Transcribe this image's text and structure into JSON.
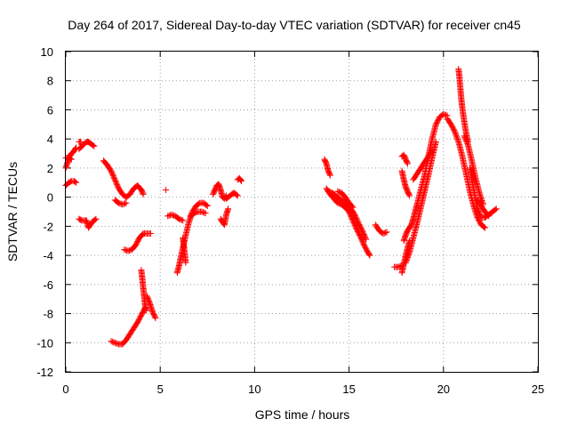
{
  "chart_data": {
    "type": "scatter",
    "title": "Day 264 of 2017, Sidereal Day-to-day VTEC variation (SDTVAR) for receiver cn45",
    "xlabel": "GPS time / hours",
    "ylabel": "SDTVAR / TECUs",
    "xlim": [
      0,
      25
    ],
    "ylim": [
      -12,
      10
    ],
    "xticks": [
      0,
      5,
      10,
      15,
      20,
      25
    ],
    "yticks": [
      -12,
      -10,
      -8,
      -6,
      -4,
      -2,
      0,
      2,
      4,
      6,
      8,
      10
    ],
    "grid": true,
    "marker": "+",
    "color": "#ff0000",
    "segments": [
      {
        "x": [
          0.0,
          0.15,
          0.3,
          0.45,
          0.55
        ],
        "y": [
          0.8,
          1.0,
          1.1,
          1.1,
          1.0
        ]
      },
      {
        "x": [
          0.0,
          0.1,
          0.2,
          0.3,
          0.4,
          0.5,
          0.55
        ],
        "y": [
          2.0,
          2.4,
          2.8,
          3.0,
          3.1,
          3.3,
          3.4
        ]
      },
      {
        "x": [
          0.0,
          0.15,
          0.3
        ],
        "y": [
          2.7,
          2.7,
          2.6
        ]
      },
      {
        "x": [
          0.7,
          0.85,
          1.0,
          1.1,
          1.2,
          1.3,
          1.4,
          1.5
        ],
        "y": [
          3.3,
          3.5,
          3.7,
          3.8,
          3.8,
          3.7,
          3.6,
          3.5
        ]
      },
      {
        "x": [
          0.7,
          0.8
        ],
        "y": [
          3.8,
          3.8
        ]
      },
      {
        "x": [
          0.7,
          0.85,
          1.0,
          1.1,
          1.2,
          1.3,
          1.4,
          1.5,
          1.6
        ],
        "y": [
          -1.5,
          -1.6,
          -1.6,
          -1.6,
          -2.1,
          -1.9,
          -1.7,
          -1.6,
          -1.5
        ]
      },
      {
        "x": [
          2.0,
          2.2,
          2.4,
          2.6,
          2.8,
          3.0,
          3.2,
          3.4,
          3.6,
          3.8,
          4.0,
          4.1
        ],
        "y": [
          2.5,
          2.2,
          1.8,
          1.2,
          0.6,
          0.2,
          0.0,
          0.2,
          0.6,
          0.8,
          0.5,
          0.2
        ]
      },
      {
        "x": [
          2.6,
          2.8,
          3.0,
          3.2
        ],
        "y": [
          -0.2,
          -0.4,
          -0.5,
          -0.4
        ]
      },
      {
        "x": [
          3.1,
          3.3,
          3.5,
          3.7,
          3.9,
          4.1,
          4.3,
          4.5
        ],
        "y": [
          -3.6,
          -3.7,
          -3.6,
          -3.3,
          -2.8,
          -2.5,
          -2.5,
          -2.5
        ]
      },
      {
        "x": [
          2.4,
          2.6,
          2.8,
          3.0,
          3.2,
          3.4,
          3.6,
          3.8,
          4.0,
          4.2
        ],
        "y": [
          -9.9,
          -10.0,
          -10.1,
          -10.1,
          -9.8,
          -9.4,
          -9.0,
          -8.6,
          -8.1,
          -7.6
        ]
      },
      {
        "x": [
          4.0,
          4.05,
          4.1,
          4.15,
          4.2,
          4.25
        ],
        "y": [
          -5.0,
          -5.6,
          -6.2,
          -6.8,
          -7.4,
          -7.8
        ]
      },
      {
        "x": [
          4.3,
          4.45,
          4.6,
          4.75
        ],
        "y": [
          -6.8,
          -7.3,
          -7.9,
          -8.3
        ]
      },
      {
        "x": [
          5.3
        ],
        "y": [
          0.5
        ]
      },
      {
        "x": [
          5.4,
          5.6,
          5.8,
          6.0,
          6.2
        ],
        "y": [
          -1.3,
          -1.2,
          -1.3,
          -1.5,
          -1.6
        ]
      },
      {
        "x": [
          5.9,
          6.0,
          6.1,
          6.2,
          6.3,
          6.5,
          6.7,
          6.9,
          7.1,
          7.3,
          7.5
        ],
        "y": [
          -5.2,
          -4.7,
          -4.1,
          -3.5,
          -2.9,
          -1.8,
          -1.0,
          -0.6,
          -0.4,
          -0.4,
          -0.6
        ]
      },
      {
        "x": [
          6.2,
          6.25,
          6.3,
          6.35
        ],
        "y": [
          -2.8,
          -3.3,
          -3.9,
          -4.5
        ]
      },
      {
        "x": [
          6.6,
          6.8,
          7.0,
          7.2,
          7.4
        ],
        "y": [
          -1.3,
          -1.1,
          -1.0,
          -1.0,
          -1.1
        ]
      },
      {
        "x": [
          7.8,
          7.9,
          8.0,
          8.1,
          8.2,
          8.3,
          8.4,
          8.5
        ],
        "y": [
          0.2,
          0.5,
          0.8,
          0.9,
          0.5,
          0.0,
          -0.1,
          0.1
        ]
      },
      {
        "x": [
          8.2,
          8.3,
          8.4,
          8.5,
          8.6
        ],
        "y": [
          -1.5,
          -1.7,
          -1.9,
          -1.2,
          -0.8
        ]
      },
      {
        "x": [
          8.5,
          8.7,
          8.9,
          9.1
        ],
        "y": [
          -0.1,
          0.1,
          0.3,
          0.1
        ]
      },
      {
        "x": [
          9.1,
          9.2,
          9.3
        ],
        "y": [
          1.2,
          1.3,
          1.1
        ]
      },
      {
        "x": [
          13.7,
          13.8,
          13.9,
          14.0
        ],
        "y": [
          2.6,
          2.3,
          1.8,
          1.5
        ]
      },
      {
        "x": [
          13.8,
          14.0,
          14.2,
          14.4,
          14.6,
          14.8,
          15.0,
          15.2,
          15.4,
          15.6,
          15.8,
          16.0,
          16.1
        ],
        "y": [
          0.6,
          0.2,
          -0.1,
          -0.4,
          -0.5,
          -0.7,
          -1.0,
          -1.6,
          -2.2,
          -2.7,
          -3.3,
          -3.8,
          -4.0
        ]
      },
      {
        "x": [
          13.9,
          14.1,
          14.3,
          14.5,
          14.7,
          14.9,
          15.1,
          15.3,
          15.5,
          15.7,
          15.9
        ],
        "y": [
          0.4,
          0.3,
          0.1,
          -0.1,
          -0.3,
          -0.5,
          -0.8,
          -1.2,
          -1.8,
          -2.3,
          -2.9
        ]
      },
      {
        "x": [
          14.4,
          14.6,
          14.8,
          15.0,
          15.2
        ],
        "y": [
          0.4,
          0.3,
          0.0,
          -0.4,
          -0.7
        ]
      },
      {
        "x": [
          16.4,
          16.6,
          16.8,
          17.0
        ],
        "y": [
          -1.9,
          -2.3,
          -2.5,
          -2.4
        ]
      },
      {
        "x": [
          17.4,
          17.6,
          17.8
        ],
        "y": [
          -4.8,
          -4.8,
          -4.7
        ]
      },
      {
        "x": [
          17.8,
          17.9,
          18.0,
          18.1,
          18.2
        ],
        "y": [
          -5.2,
          -4.6,
          -4.0,
          -3.5,
          -3.0
        ]
      },
      {
        "x": [
          17.8,
          17.9,
          18.0,
          18.1
        ],
        "y": [
          2.8,
          2.9,
          2.6,
          2.3
        ]
      },
      {
        "x": [
          17.8,
          17.9,
          18.0,
          18.1,
          18.2
        ],
        "y": [
          1.8,
          1.2,
          0.7,
          0.4,
          0.1
        ]
      },
      {
        "x": [
          17.9,
          18.0,
          18.1,
          18.2,
          18.3,
          18.4,
          18.5,
          18.6,
          18.8,
          19.0,
          19.2,
          19.4,
          19.6,
          19.8,
          20.0,
          20.2
        ],
        "y": [
          -3.0,
          -2.6,
          -2.3,
          -2.1,
          -1.9,
          -1.5,
          -1.0,
          -0.5,
          0.5,
          1.5,
          2.8,
          4.0,
          5.0,
          5.5,
          5.7,
          5.6
        ]
      },
      {
        "x": [
          18.0,
          18.2,
          18.4,
          18.6,
          18.8,
          19.0,
          19.2,
          19.4,
          19.6
        ],
        "y": [
          -4.5,
          -3.8,
          -2.8,
          -1.8,
          -0.7,
          0.4,
          1.5,
          2.7,
          3.8
        ]
      },
      {
        "x": [
          18.4,
          18.6,
          18.8,
          19.0,
          19.2,
          19.4
        ],
        "y": [
          1.2,
          1.6,
          2.0,
          2.4,
          2.8,
          3.2
        ]
      },
      {
        "x": [
          20.2,
          20.4,
          20.6,
          20.8,
          21.0,
          21.2,
          21.4,
          21.6,
          21.8,
          22.0,
          22.2
        ],
        "y": [
          5.4,
          5.0,
          4.5,
          3.8,
          2.8,
          1.6,
          0.4,
          -0.6,
          -1.4,
          -1.9,
          -2.1
        ]
      },
      {
        "x": [
          20.8,
          20.85,
          20.9,
          20.95,
          21.0,
          21.1,
          21.2,
          21.3
        ],
        "y": [
          8.8,
          8.2,
          7.4,
          6.7,
          6.1,
          5.2,
          4.4,
          3.8
        ]
      },
      {
        "x": [
          21.1,
          21.3,
          21.5,
          21.7,
          21.9,
          22.1
        ],
        "y": [
          4.2,
          3.6,
          2.5,
          1.3,
          0.3,
          -0.5
        ]
      },
      {
        "x": [
          21.4,
          21.6,
          21.8,
          22.0,
          22.2,
          22.4,
          22.6,
          22.8
        ],
        "y": [
          2.0,
          0.5,
          -0.8,
          -1.4,
          -1.4,
          -1.2,
          -1.0,
          -0.8
        ]
      },
      {
        "x": [
          21.8,
          22.0,
          22.2,
          22.4
        ],
        "y": [
          -0.2,
          -0.6,
          -1.0,
          -1.3
        ]
      }
    ]
  }
}
